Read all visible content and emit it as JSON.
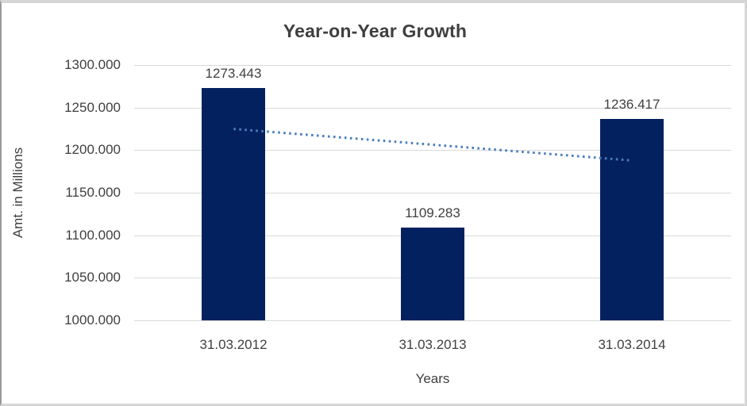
{
  "title": "Year-on-Year Growth",
  "axes": {
    "y_title": "Amt. in Millions",
    "x_title": "Years"
  },
  "chart_data": {
    "type": "bar",
    "title": "Year-on-Year Growth",
    "categories": [
      "31.03.2012",
      "31.03.2013",
      "31.03.2014"
    ],
    "values": [
      1273.443,
      1109.283,
      1236.417
    ],
    "data_labels": [
      "1273.443",
      "1109.283",
      "1236.417"
    ],
    "xlabel": "Years",
    "ylabel": "Amt. in Millions",
    "ylim": [
      1000,
      1300
    ],
    "ytick_step": 50,
    "ytick_labels": [
      "1300.000",
      "1250.000",
      "1200.000",
      "1150.000",
      "1100.000",
      "1050.000",
      "1000.000"
    ],
    "grid": true,
    "legend": false,
    "trendline": {
      "type": "linear",
      "style": "dotted",
      "endpoint_values": [
        1224.894,
        1187.868
      ]
    },
    "colors": {
      "bar": "#04215f",
      "trendline": "#4a7ebb",
      "gridline": "#d9d9d9",
      "text": "#3f3f3f"
    }
  }
}
